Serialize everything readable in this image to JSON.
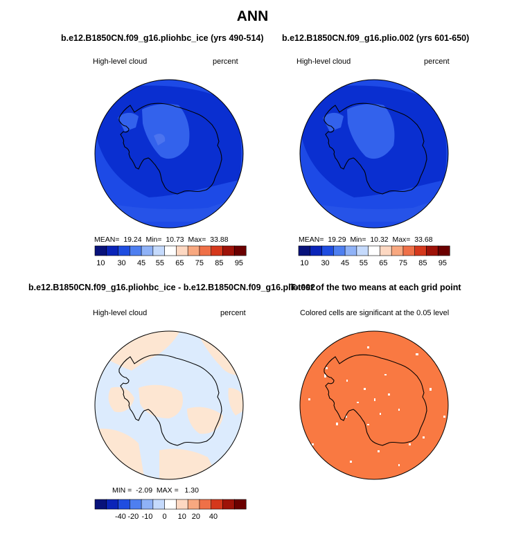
{
  "title": "ANN",
  "colors": {
    "deep_blue": "#0a2fd0",
    "mid_blue": "#1d4ae6",
    "light_blue_region": "#4c74ef",
    "diff_blue": "#dcebfd",
    "diff_peach": "#fde6d2",
    "signif_orange": "#f97942",
    "coastline": "#000000"
  },
  "colorbar_colors": [
    "#08127a",
    "#0a24b8",
    "#1f4de0",
    "#4e7ff0",
    "#8fb2f7",
    "#c5dafc",
    "#ffffff",
    "#fdd8c2",
    "#f8a880",
    "#ef7048",
    "#d5381c",
    "#9e1208",
    "#6b0000"
  ],
  "panels": [
    {
      "title": "b.e12.B1850CN.f09_g16.pliohbc_ice (yrs 490-514)",
      "variable": "High-level cloud",
      "units": "percent",
      "stats": {
        "mean_label": "MEAN=",
        "mean": "19.24",
        "min_label": "Min=",
        "min": "10.73",
        "max_label": "Max=",
        "max": "33.88"
      },
      "colorbar_ticks": [
        "10",
        "30",
        "45",
        "55",
        "65",
        "75",
        "85",
        "95"
      ]
    },
    {
      "title": "b.e12.B1850CN.f09_g16.plio.002 (yrs 601-650)",
      "variable": "High-level cloud",
      "units": "percent",
      "stats": {
        "mean_label": "MEAN=",
        "mean": "19.29",
        "min_label": "Min=",
        "min": "10.32",
        "max_label": "Max=",
        "max": "33.68"
      },
      "colorbar_ticks": [
        "10",
        "30",
        "45",
        "55",
        "65",
        "75",
        "85",
        "95"
      ]
    },
    {
      "title": "b.e12.B1850CN.f09_g16.pliohbc_ice - b.e12.B1850CN.f09_g16.plio.002",
      "variable": "High-level cloud",
      "units": "percent",
      "stats": {
        "min_label": "MIN =",
        "min": "-2.09",
        "max_label": "MAX =",
        "max": "1.30"
      },
      "colorbar_ticks": [
        "-40",
        "-20",
        "-10",
        "0",
        "10",
        "20",
        "40"
      ]
    },
    {
      "title": "T-test of the two means at each grid point",
      "subtitle": "Colored cells are significant at the 0.05 level"
    }
  ]
}
